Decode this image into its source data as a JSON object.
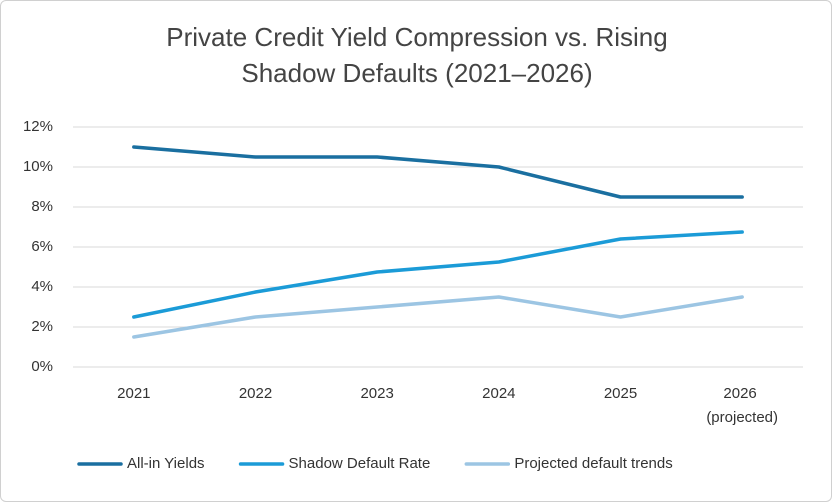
{
  "chart_data": {
    "type": "line",
    "title": "Private Credit Yield Compression vs. Rising Shadow Defaults (2021–2026)",
    "categories": [
      "2021",
      "2022",
      "2023",
      "2024",
      "2025",
      "2026 (projected)"
    ],
    "series": [
      {
        "name": "All-in Yields",
        "color": "#1a6fa0",
        "values": [
          11,
          10.5,
          10.5,
          10,
          8.5,
          8.5
        ]
      },
      {
        "name": "Shadow Default Rate",
        "color": "#1b9bd7",
        "values": [
          2.5,
          3.75,
          4.75,
          5.25,
          6.4,
          6.75
        ]
      },
      {
        "name": "Projected default trends",
        "color": "#9cc5e3",
        "values": [
          1.5,
          2.5,
          3,
          3.5,
          2.5,
          3.5
        ]
      }
    ],
    "ylim": [
      0,
      12
    ],
    "yticks": [
      {
        "value": 0,
        "label": "0%"
      },
      {
        "value": 2,
        "label": "2%"
      },
      {
        "value": 4,
        "label": "4%"
      },
      {
        "value": 6,
        "label": "6%"
      },
      {
        "value": 8,
        "label": "8%"
      },
      {
        "value": 10,
        "label": "10%"
      },
      {
        "value": 12,
        "label": "12%"
      }
    ],
    "grid": true,
    "legend": "bottom"
  }
}
